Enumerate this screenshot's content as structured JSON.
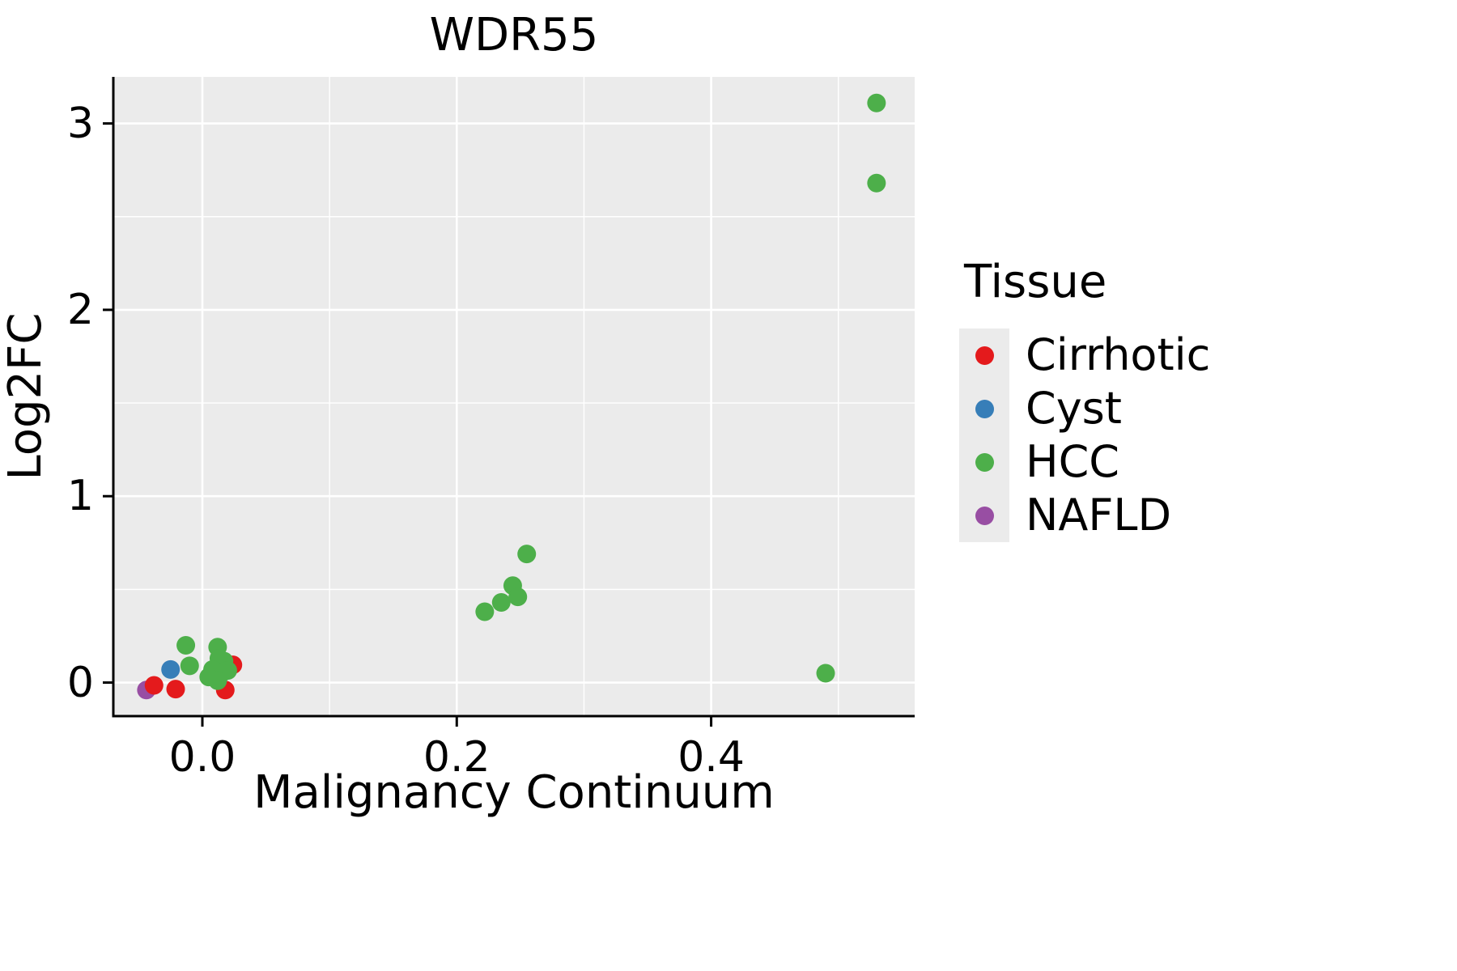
{
  "page": {
    "title": "WDR55"
  },
  "chart_data": {
    "type": "scatter",
    "title": "WDR55",
    "xlabel": "Malignancy Continuum",
    "ylabel": "Log2FC",
    "xlim": [
      -0.07,
      0.56
    ],
    "ylim": [
      -0.18,
      3.25
    ],
    "x_ticks": [
      0.0,
      0.2,
      0.4
    ],
    "x_tick_labels": [
      "0.0",
      "0.2",
      "0.4"
    ],
    "x_minor_ticks": [
      0.1,
      0.3,
      0.5
    ],
    "y_ticks": [
      0,
      1,
      2,
      3
    ],
    "y_tick_labels": [
      "0",
      "1",
      "2",
      "3"
    ],
    "y_minor_ticks": [
      0.5,
      1.5,
      2.5
    ],
    "grid": true,
    "panel_background": "#EBEBEB",
    "gridline_color": "#FFFFFF",
    "axis_color": "#000000",
    "point_radius": 11.5,
    "legend_title": "Tissue",
    "legend_position": "right",
    "series": [
      {
        "name": "Cirrhotic",
        "color": "#E41A1C",
        "points": [
          [
            -0.038,
            -0.015
          ],
          [
            -0.021,
            -0.035
          ],
          [
            0.018,
            -0.04
          ],
          [
            0.024,
            0.095
          ]
        ]
      },
      {
        "name": "Cyst",
        "color": "#377EB8",
        "points": [
          [
            -0.025,
            0.07
          ]
        ]
      },
      {
        "name": "HCC",
        "color": "#4DAF4A",
        "points": [
          [
            0.53,
            3.11
          ],
          [
            0.53,
            2.68
          ],
          [
            0.255,
            0.69
          ],
          [
            0.244,
            0.52
          ],
          [
            0.248,
            0.46
          ],
          [
            0.235,
            0.43
          ],
          [
            0.222,
            0.38
          ],
          [
            0.49,
            0.05
          ],
          [
            -0.013,
            0.2
          ],
          [
            -0.01,
            0.09
          ],
          [
            0.012,
            0.19
          ],
          [
            0.017,
            0.115
          ],
          [
            0.013,
            0.13
          ],
          [
            0.008,
            0.07
          ],
          [
            0.02,
            0.065
          ],
          [
            0.015,
            0.05
          ],
          [
            0.005,
            0.03
          ],
          [
            0.012,
            0.01
          ]
        ]
      },
      {
        "name": "NAFLD",
        "color": "#984EA3",
        "points": [
          [
            -0.044,
            -0.04
          ]
        ]
      }
    ]
  },
  "legend": {
    "title": "Tissue",
    "entries": [
      {
        "label": "Cirrhotic",
        "color": "#E41A1C"
      },
      {
        "label": "Cyst",
        "color": "#377EB8"
      },
      {
        "label": "HCC",
        "color": "#4DAF4A"
      },
      {
        "label": "NAFLD",
        "color": "#984EA3"
      }
    ]
  }
}
